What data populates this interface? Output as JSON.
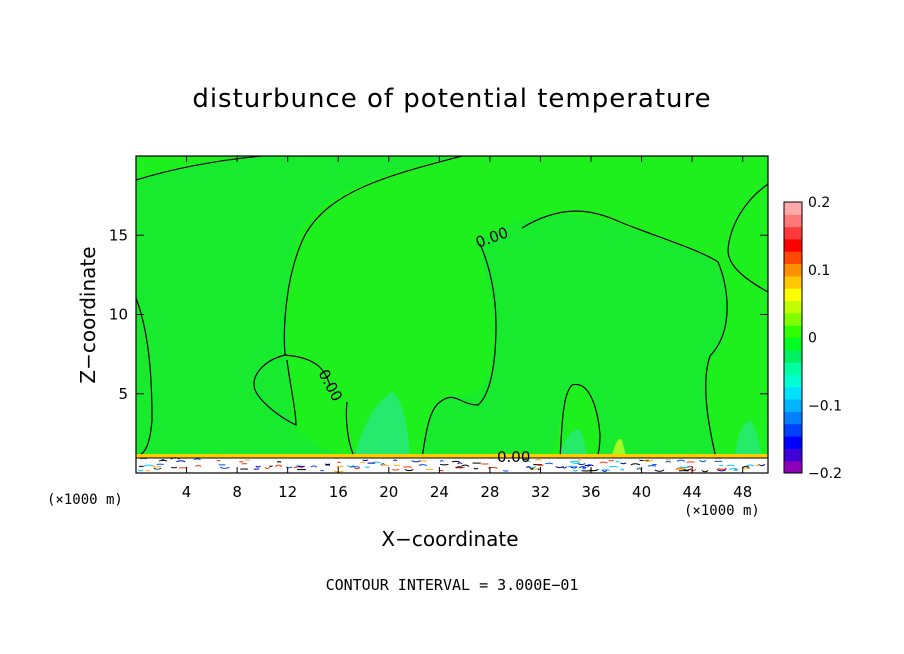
{
  "chart_data": {
    "type": "heatmap",
    "title": "disturbunce of potential temperature",
    "xlabel": "X−coordinate",
    "ylabel": "Z−coordinate",
    "x_unit_left": "(×1000 m)",
    "x_unit_right": "(×1000 m)",
    "xlim": [
      0,
      50
    ],
    "ylim": [
      0,
      20
    ],
    "x_ticks": [
      4,
      8,
      12,
      16,
      20,
      24,
      28,
      32,
      36,
      40,
      44,
      48
    ],
    "y_ticks": [
      5,
      10,
      15
    ],
    "contour_interval_text": "CONTOUR INTERVAL = 3.000E−01",
    "contour_labels": [
      "0.00",
      "0.00",
      "0.00"
    ],
    "colorbar": {
      "range": [
        -0.2,
        0.2
      ],
      "tick_values": [
        0.2,
        0.1,
        0,
        -0.1,
        -0.2
      ],
      "tick_labels": [
        "0.2",
        "0.1",
        "0",
        "−0.1",
        "−0.2"
      ],
      "colors": [
        "#8e00b8",
        "#4000d8",
        "#0000ff",
        "#0040ff",
        "#0080ff",
        "#00b4ff",
        "#00e0ff",
        "#00ffd0",
        "#00ffa0",
        "#00f060",
        "#00ff20",
        "#30ff00",
        "#80ff00",
        "#c0ff00",
        "#ffff00",
        "#ffc800",
        "#ff9000",
        "#ff4800",
        "#ff0000",
        "#ff3a3a",
        "#ff7878",
        "#ffaaaa"
      ]
    },
    "field_color": "#1ef01e"
  }
}
